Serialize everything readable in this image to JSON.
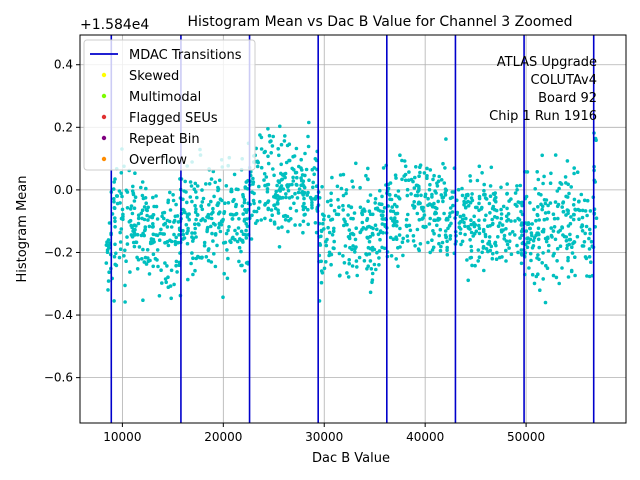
{
  "chart_data": {
    "type": "scatter",
    "title": "Histogram Mean vs Dac B Value for Channel 3 Zoomed",
    "xlabel": "Dac B Value",
    "ylabel": "Histogram Mean",
    "offset_label": "+1.584e4",
    "xlim": [
      5800,
      59900
    ],
    "ylim": [
      -0.745,
      0.495
    ],
    "xticks": [
      10000,
      20000,
      30000,
      40000,
      50000
    ],
    "xtick_labels": [
      "10000",
      "20000",
      "30000",
      "40000",
      "50000"
    ],
    "yticks": [
      -0.6,
      -0.4,
      -0.2,
      0.0,
      0.2,
      0.4
    ],
    "ytick_labels": [
      "−0.6",
      "−0.4",
      "−0.2",
      "0.0",
      "0.2",
      "0.4"
    ],
    "grid": true,
    "legend_position": "upper-left",
    "mdac_transitions": [
      8900,
      15800,
      22600,
      29400,
      36200,
      43000,
      49800,
      56700
    ],
    "series": [
      {
        "name": "MDAC Transitions",
        "kind": "line",
        "color": "#0000cc"
      },
      {
        "name": "Skewed",
        "kind": "marker",
        "color": "#ffff00"
      },
      {
        "name": "Multimodal",
        "kind": "marker",
        "color": "#7cfc00"
      },
      {
        "name": "Flagged SEUs",
        "kind": "marker",
        "color": "#e03030"
      },
      {
        "name": "Repeat Bin",
        "kind": "marker",
        "color": "#800080"
      },
      {
        "name": "Overflow",
        "kind": "marker",
        "color": "#ff8c00"
      }
    ],
    "point_color": "#00bfbf",
    "segments": [
      {
        "x_start": 8300,
        "x_end": 8900,
        "center": -0.2,
        "spread": 0.12,
        "count": 18
      },
      {
        "x_start": 8900,
        "x_end": 15800,
        "center": -0.12,
        "spread": 0.17,
        "count": 220
      },
      {
        "x_start": 15800,
        "x_end": 22600,
        "center": -0.08,
        "spread": 0.16,
        "count": 220
      },
      {
        "x_start": 22600,
        "x_end": 29400,
        "center": 0.01,
        "spread": 0.15,
        "count": 220
      },
      {
        "x_start": 29400,
        "x_end": 36200,
        "center": -0.12,
        "spread": 0.16,
        "count": 200
      },
      {
        "x_start": 36200,
        "x_end": 43000,
        "center": -0.06,
        "spread": 0.15,
        "count": 210
      },
      {
        "x_start": 43000,
        "x_end": 49800,
        "center": -0.1,
        "spread": 0.13,
        "count": 210
      },
      {
        "x_start": 49800,
        "x_end": 56700,
        "center": -0.12,
        "spread": 0.18,
        "count": 210
      },
      {
        "x_start": 56700,
        "x_end": 57000,
        "center": 0.05,
        "spread": 0.15,
        "count": 12
      }
    ],
    "annotations": [
      "ATLAS Upgrade",
      "COLUTAv4",
      "Board 92",
      "Chip 1  Run 1916"
    ]
  }
}
